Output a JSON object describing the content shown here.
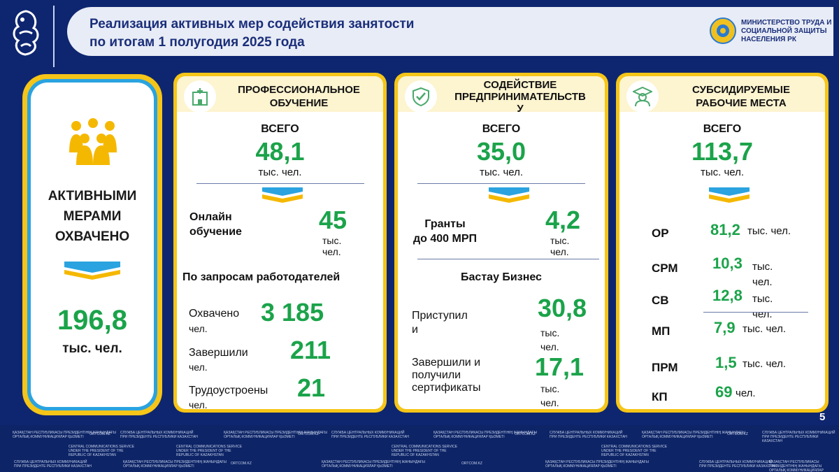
{
  "header": {
    "title": "Реализация активных мер содействия занятости\nпо итогам 1 полугодия 2025 года",
    "ministry": "МИНИСТЕРСТВО ТРУДА И\nСОЦИАЛЬНОЙ ЗАЩИТЫ\nНАСЕЛЕНИЯ РК"
  },
  "summary": {
    "label": "АКТИВНЫМИ\nМЕРАМИ\nОХВАЧЕНО",
    "value": "196,8",
    "unit": "тыс. чел."
  },
  "panels": [
    {
      "title": "ПРОФЕССИОНАЛЬНОЕ\nОБУЧЕНИЕ",
      "total_label": "ВСЕГО",
      "total_value": "48,1",
      "total_unit": "тыс. чел.",
      "sub_label": "Онлайн\nобучение",
      "sub_value": "45",
      "sub_unit": "тыс.\nчел.",
      "section": "По запросам работодателей",
      "rows": [
        {
          "label": "Охвачено",
          "value": "3 185",
          "unit": "чел."
        },
        {
          "label": "Завершили",
          "value": "211",
          "unit": "чел."
        },
        {
          "label": "Трудоустроены",
          "value": "21",
          "unit": "чел."
        }
      ]
    },
    {
      "title": "СОДЕЙСТВИЕ\nПРЕДПРИНИМАТЕЛЬСТВ\nУ",
      "total_label": "ВСЕГО",
      "total_value": "35,0",
      "total_unit": "тыс. чел.",
      "sub_label": "Гранты\nдо 400 МРП",
      "sub_value": "4,2",
      "sub_unit": "тыс.\nчел.",
      "section": "Бастау Бизнес",
      "rows": [
        {
          "label": "Приступил\nи",
          "value": "30,8",
          "unit": "тыс.\nчел."
        },
        {
          "label": "Завершили и\nполучили\nсертификаты",
          "value": "17,1",
          "unit": "тыс.\nчел."
        }
      ]
    },
    {
      "title": "СУБСИДИРУЕМЫЕ\nРАБОЧИЕ МЕСТА",
      "total_label": "ВСЕГО",
      "total_value": "113,7",
      "total_unit": "тыс. чел.",
      "rows": [
        {
          "label": "ОР",
          "value": "81,2",
          "unit": "тыс. чел."
        },
        {
          "label": "СРМ",
          "value": "10,3",
          "unit": "тыс.\nчел."
        },
        {
          "label": "СВ",
          "value": "12,8",
          "unit": "тыс.\nчел."
        },
        {
          "label": "МП",
          "value": "7,9",
          "unit": "тыс. чел."
        },
        {
          "label": "ПРМ",
          "value": "1,5",
          "unit": "тыс. чел."
        },
        {
          "label": "КП",
          "value": "69",
          "unit": "чел."
        }
      ]
    }
  ],
  "page_number": "5",
  "footer": {
    "items": [
      "ҚАЗАҚСТАН РЕСПУБЛИКАСЫ ПРЕЗИДЕНТІНІҢ ЖАНЫНДАҒЫ\nОРТАЛЫҚ КОММУНИКАЦИЯЛАР ҚЫЗМЕТІ",
      "ORTCOM.KZ",
      "СЛУЖБА ЦЕНТРАЛЬНЫХ КОММУНИКАЦИЙ\nПРИ ПРЕЗИДЕНТЕ РЕСПУБЛИКИ КАЗАХСТАН",
      "CENTRAL COMMUNICATIONS SERVICE\nUNDER THE PRESIDENT OF THE\nREPUBLIC OF KAZAKHSTAN"
    ]
  },
  "colors": {
    "accent_green": "#1ba34a",
    "accent_yellow": "#f5c518",
    "accent_blue": "#2aa3e0",
    "navy": "#0e2670"
  }
}
